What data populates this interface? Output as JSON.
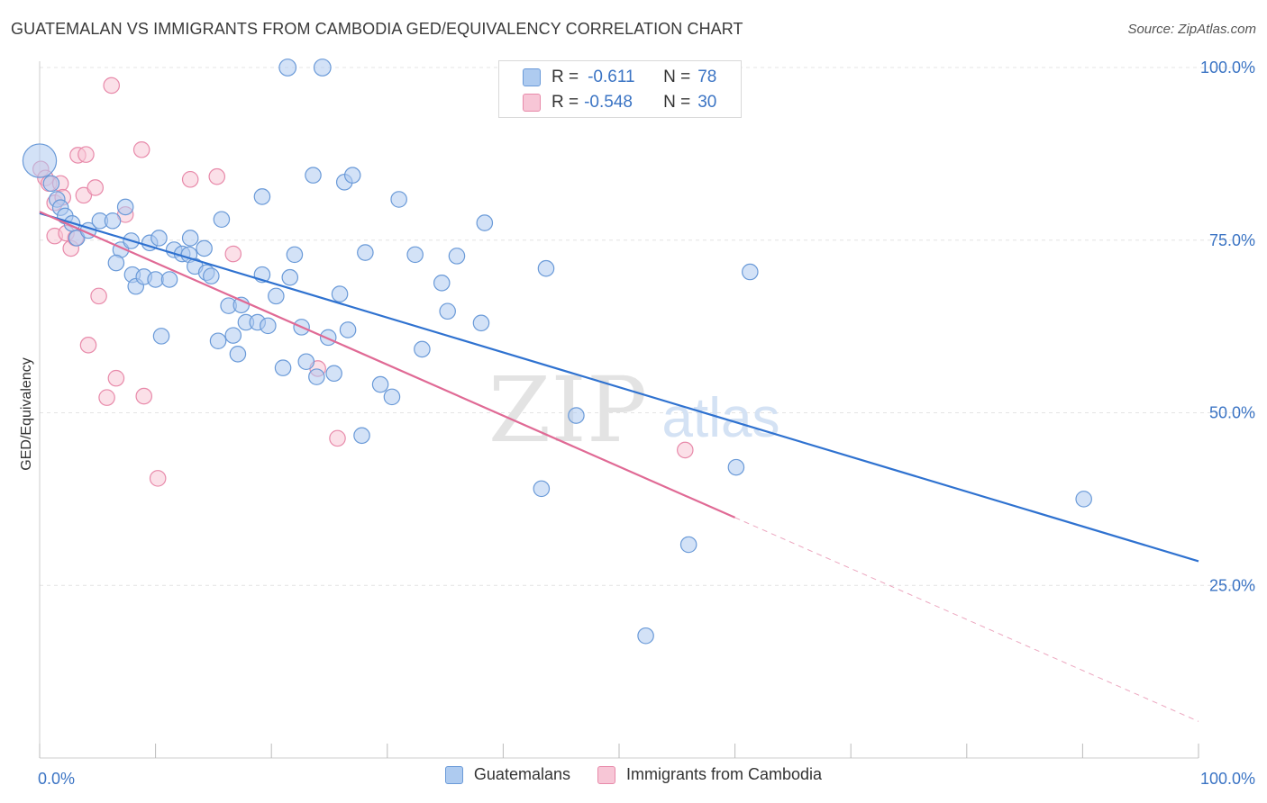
{
  "header": {
    "title": "GUATEMALAN VS IMMIGRANTS FROM CAMBODIA GED/EQUIVALENCY CORRELATION CHART",
    "source": "Source: ZipAtlas.com"
  },
  "watermark": {
    "zip": "ZIP",
    "atlas": "atlas"
  },
  "legend": {
    "rows": [
      {
        "r_label": "R =",
        "r_value": "-0.611",
        "n_label": "N =",
        "n_value": "78"
      },
      {
        "r_label": "R =",
        "r_value": "-0.548",
        "n_label": "N =",
        "n_value": "30"
      }
    ]
  },
  "bottom_legend": {
    "guatemalans": "Guatemalans",
    "cambodia": "Immigrants from Cambodia"
  },
  "colors": {
    "blue_fill": "#aecbf0",
    "blue_stroke": "#6a9ad8",
    "blue_line": "#2f72d0",
    "pink_fill": "#f7c6d6",
    "pink_stroke": "#e88aaa",
    "pink_line": "#e06a95",
    "tick_label": "#3b74c4",
    "grid": "#e4e4e4"
  },
  "chart_data": {
    "type": "scatter",
    "title": "GUATEMALAN VS IMMIGRANTS FROM CAMBODIA GED/EQUIVALENCY CORRELATION CHART",
    "xlabel": "",
    "ylabel": "GED/Equivalency",
    "xlim": [
      0,
      100
    ],
    "ylim": [
      0,
      100
    ],
    "x_tick_labels": [
      {
        "value": 0,
        "label": "0.0%"
      },
      {
        "value": 100,
        "label": "100.0%"
      }
    ],
    "y_tick_labels": [
      {
        "value": 25,
        "label": "25.0%"
      },
      {
        "value": 50,
        "label": "50.0%"
      },
      {
        "value": 75,
        "label": "75.0%"
      },
      {
        "value": 100,
        "label": "100.0%"
      }
    ],
    "series": [
      {
        "name": "Guatemalans",
        "color": "#aecbf0",
        "trend": {
          "x0": 0,
          "y0": 78.9,
          "x1": 100,
          "y1": 28.5,
          "solid_to": 100
        },
        "points": [
          [
            0,
            86.5,
            30
          ],
          [
            21.4,
            100,
            15
          ],
          [
            24.4,
            100,
            15
          ],
          [
            1.0,
            83.2,
            14
          ],
          [
            1.5,
            80.9,
            14
          ],
          [
            1.8,
            79.7,
            14
          ],
          [
            2.2,
            78.5,
            14
          ],
          [
            2.8,
            77.4,
            14
          ],
          [
            3.2,
            75.3,
            14
          ],
          [
            4.2,
            76.4,
            14
          ],
          [
            5.2,
            77.8,
            14
          ],
          [
            6.3,
            77.8,
            14
          ],
          [
            7.4,
            79.8,
            14
          ],
          [
            7.0,
            73.6,
            14
          ],
          [
            6.6,
            71.7,
            14
          ],
          [
            7.9,
            74.9,
            14
          ],
          [
            8.0,
            70.0,
            14
          ],
          [
            8.3,
            68.3,
            14
          ],
          [
            9.0,
            69.7,
            14
          ],
          [
            10.0,
            69.3,
            14
          ],
          [
            9.5,
            74.6,
            14
          ],
          [
            10.3,
            75.3,
            14
          ],
          [
            10.5,
            61.1,
            14
          ],
          [
            11.2,
            69.3,
            14
          ],
          [
            11.6,
            73.6,
            14
          ],
          [
            12.3,
            73.0,
            14
          ],
          [
            12.9,
            72.9,
            14
          ],
          [
            13.0,
            75.3,
            14
          ],
          [
            13.4,
            71.2,
            14
          ],
          [
            14.2,
            73.8,
            14
          ],
          [
            14.4,
            70.3,
            14
          ],
          [
            14.8,
            69.8,
            14
          ],
          [
            15.4,
            60.4,
            14
          ],
          [
            15.7,
            78.0,
            14
          ],
          [
            16.3,
            65.5,
            14
          ],
          [
            16.7,
            61.2,
            14
          ],
          [
            17.1,
            58.5,
            14
          ],
          [
            17.4,
            65.6,
            14
          ],
          [
            17.8,
            63.1,
            14
          ],
          [
            18.8,
            63.1,
            14
          ],
          [
            19.2,
            70.0,
            14
          ],
          [
            19.2,
            81.3,
            14
          ],
          [
            19.7,
            62.6,
            14
          ],
          [
            20.4,
            66.9,
            14
          ],
          [
            21.0,
            56.5,
            14
          ],
          [
            21.6,
            69.6,
            14
          ],
          [
            22.0,
            72.9,
            14
          ],
          [
            22.6,
            62.4,
            14
          ],
          [
            23.0,
            57.4,
            14
          ],
          [
            23.6,
            84.4,
            14
          ],
          [
            23.9,
            55.2,
            14
          ],
          [
            24.9,
            60.9,
            14
          ],
          [
            25.4,
            55.7,
            14
          ],
          [
            25.9,
            67.2,
            14
          ],
          [
            26.3,
            83.4,
            14
          ],
          [
            26.6,
            62.0,
            14
          ],
          [
            27.0,
            84.4,
            14
          ],
          [
            27.8,
            46.7,
            14
          ],
          [
            28.1,
            73.2,
            14
          ],
          [
            29.4,
            54.1,
            14
          ],
          [
            30.4,
            52.3,
            14
          ],
          [
            31.0,
            80.9,
            14
          ],
          [
            32.4,
            72.9,
            14
          ],
          [
            33.0,
            59.2,
            14
          ],
          [
            34.7,
            68.8,
            14
          ],
          [
            35.2,
            64.7,
            14
          ],
          [
            36.0,
            72.7,
            14
          ],
          [
            38.1,
            63.0,
            14
          ],
          [
            38.4,
            77.5,
            14
          ],
          [
            43.3,
            39.0,
            14
          ],
          [
            43.7,
            70.9,
            14
          ],
          [
            46.3,
            49.6,
            14
          ],
          [
            52.3,
            17.7,
            14
          ],
          [
            56.0,
            30.9,
            14
          ],
          [
            60.1,
            42.1,
            14
          ],
          [
            61.3,
            70.4,
            14
          ],
          [
            90.1,
            37.5,
            14
          ]
        ]
      },
      {
        "name": "Immigrants from Cambodia",
        "color": "#f7c6d6",
        "trend": {
          "x0": 0,
          "y0": 79.1,
          "x1": 100,
          "y1": 5.3,
          "solid_to": 60
        },
        "points": [
          [
            0.1,
            85.3,
            14
          ],
          [
            0.5,
            84.0,
            14
          ],
          [
            0.8,
            83.2,
            14
          ],
          [
            1.3,
            80.4,
            14
          ],
          [
            1.3,
            75.6,
            14
          ],
          [
            1.8,
            83.2,
            14
          ],
          [
            2.0,
            81.2,
            14
          ],
          [
            2.3,
            76.0,
            14
          ],
          [
            2.7,
            73.8,
            14
          ],
          [
            3.1,
            75.3,
            14
          ],
          [
            3.3,
            87.3,
            14
          ],
          [
            3.8,
            81.5,
            14
          ],
          [
            4.0,
            87.4,
            14
          ],
          [
            4.2,
            59.8,
            14
          ],
          [
            4.8,
            82.6,
            14
          ],
          [
            5.1,
            66.9,
            14
          ],
          [
            5.8,
            52.2,
            14
          ],
          [
            6.2,
            97.4,
            14
          ],
          [
            6.6,
            55.0,
            14
          ],
          [
            7.4,
            78.7,
            14
          ],
          [
            8.8,
            88.1,
            14
          ],
          [
            9.0,
            52.4,
            14
          ],
          [
            10.2,
            40.5,
            14
          ],
          [
            13.0,
            83.8,
            14
          ],
          [
            15.3,
            84.2,
            14
          ],
          [
            16.7,
            73.0,
            14
          ],
          [
            24.0,
            56.4,
            14
          ],
          [
            25.7,
            46.3,
            14
          ],
          [
            55.7,
            44.6,
            14
          ]
        ]
      }
    ]
  }
}
